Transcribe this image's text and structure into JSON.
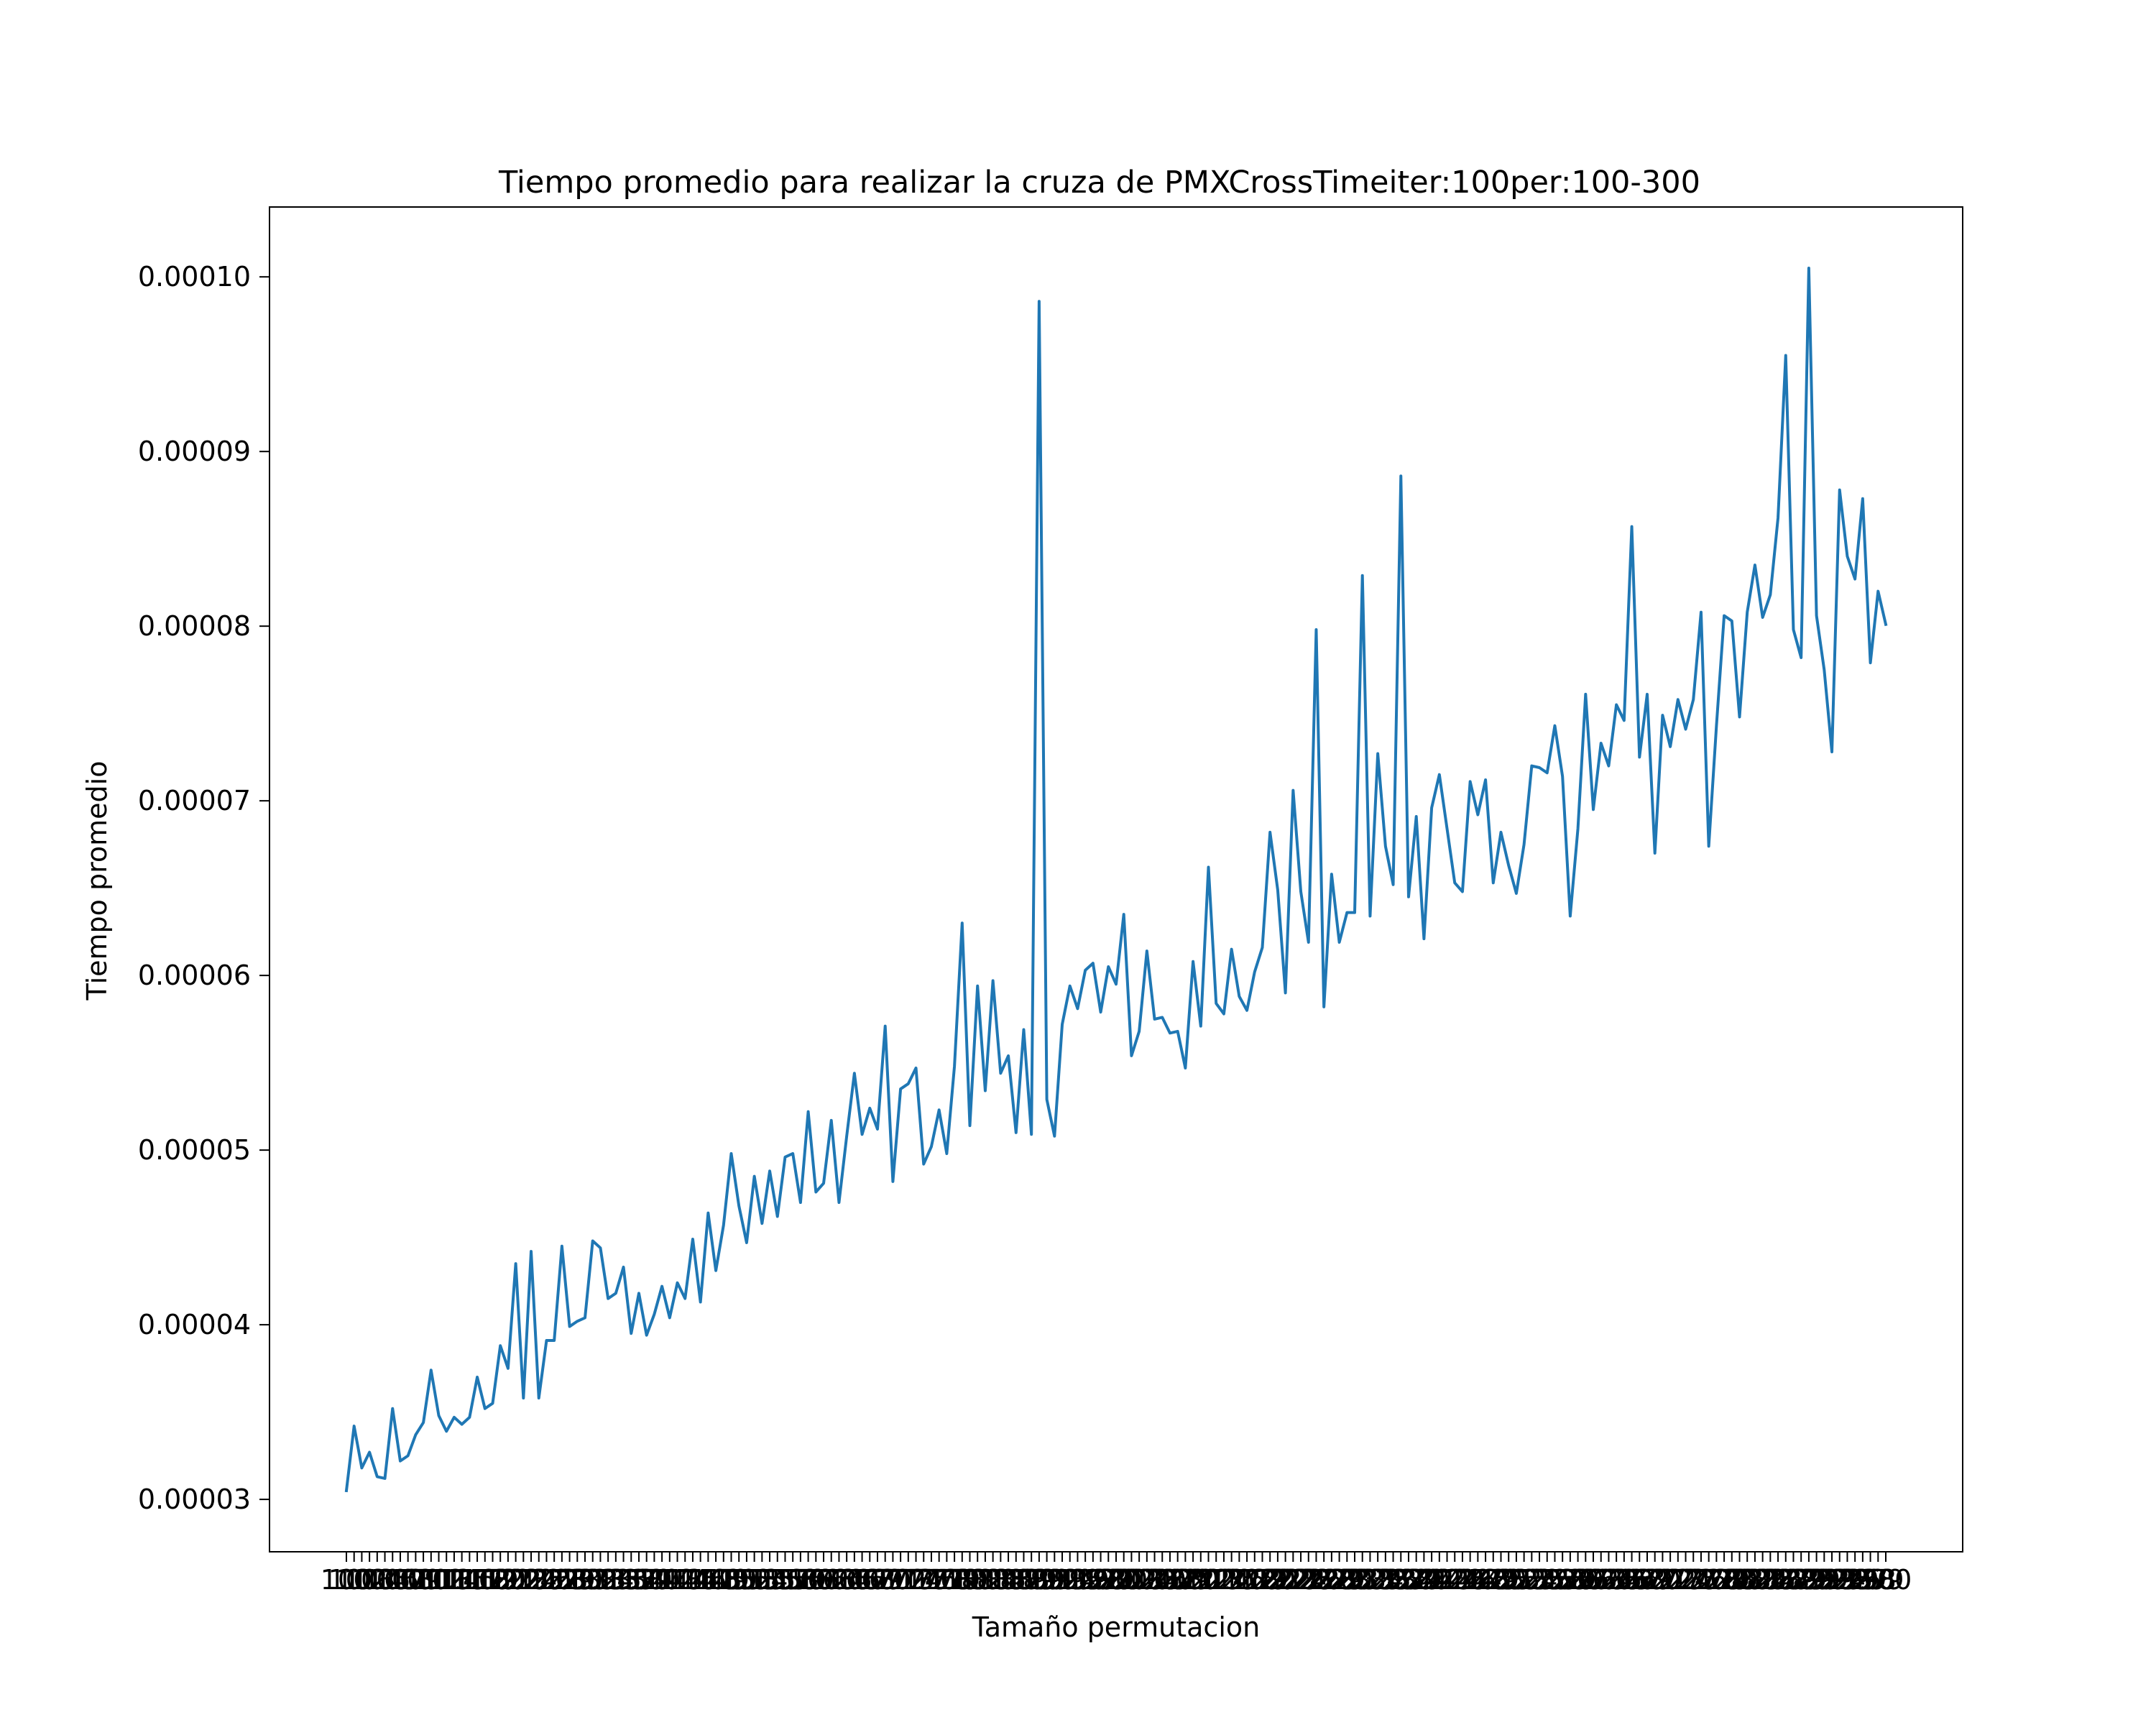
{
  "chart_data": {
    "type": "line",
    "title": "Tiempo promedio para realizar la cruza de PMXCrossTimeiter:100per:100-300",
    "xlabel": "Tamaño permutacion",
    "ylabel": "Tiempo promedio",
    "x_start": 100,
    "x_end": 300,
    "x_step": 1,
    "ylim": [
      2.7e-05,
      0.000104
    ],
    "yticks": [
      3e-05,
      4e-05,
      5e-05,
      6e-05,
      7e-05,
      8e-05,
      9e-05,
      0.0001
    ],
    "ytick_labels": [
      "0.00003",
      "0.00004",
      "0.00005",
      "0.00006",
      "0.00007",
      "0.00008",
      "0.00009",
      "0.00010"
    ],
    "grid": false,
    "line_color": "#1f77b4",
    "anchors": [
      [
        100,
        3.05e-05
      ],
      [
        101,
        3.42e-05
      ],
      [
        102,
        3.18e-05
      ],
      [
        103,
        3.27e-05
      ],
      [
        104,
        3.13e-05
      ],
      [
        105,
        3.12e-05
      ],
      [
        106,
        3.52e-05
      ],
      [
        107,
        3.22e-05
      ],
      [
        108,
        3.25e-05
      ],
      [
        109,
        3.37e-05
      ],
      [
        110,
        3.44e-05
      ],
      [
        111,
        3.74e-05
      ],
      [
        112,
        3.48e-05
      ],
      [
        113,
        3.39e-05
      ],
      [
        114,
        3.47e-05
      ],
      [
        115,
        3.43e-05
      ],
      [
        116,
        3.47e-05
      ],
      [
        117,
        3.7e-05
      ],
      [
        118,
        3.52e-05
      ],
      [
        119,
        3.55e-05
      ],
      [
        120,
        3.88e-05
      ],
      [
        121,
        3.75e-05
      ],
      [
        122,
        4.35e-05
      ],
      [
        123,
        3.58e-05
      ],
      [
        124,
        4.42e-05
      ],
      [
        125,
        3.58e-05
      ],
      [
        126,
        3.91e-05
      ],
      [
        127,
        3.91e-05
      ],
      [
        128,
        4.45e-05
      ],
      [
        129,
        3.99e-05
      ],
      [
        130,
        4.02e-05
      ],
      [
        131,
        4.04e-05
      ],
      [
        132,
        4.48e-05
      ],
      [
        133,
        4.44e-05
      ],
      [
        134,
        4.15e-05
      ],
      [
        135,
        4.18e-05
      ],
      [
        136,
        4.33e-05
      ],
      [
        137,
        3.95e-05
      ],
      [
        138,
        4.18e-05
      ],
      [
        139,
        3.94e-05
      ],
      [
        140,
        4.06e-05
      ],
      [
        141,
        4.22e-05
      ],
      [
        142,
        4.04e-05
      ],
      [
        143,
        4.24e-05
      ],
      [
        144,
        4.15e-05
      ],
      [
        145,
        4.49e-05
      ],
      [
        146,
        4.13e-05
      ],
      [
        147,
        4.64e-05
      ],
      [
        148,
        4.31e-05
      ],
      [
        149,
        4.57e-05
      ],
      [
        150,
        4.98e-05
      ],
      [
        151,
        4.68e-05
      ],
      [
        152,
        4.47e-05
      ],
      [
        153,
        4.85e-05
      ],
      [
        154,
        4.58e-05
      ],
      [
        155,
        4.88e-05
      ],
      [
        156,
        4.62e-05
      ],
      [
        157,
        4.96e-05
      ],
      [
        158,
        4.98e-05
      ],
      [
        159,
        4.7e-05
      ],
      [
        160,
        5.22e-05
      ],
      [
        161,
        4.76e-05
      ],
      [
        162,
        4.81e-05
      ],
      [
        163,
        5.17e-05
      ],
      [
        164,
        4.7e-05
      ],
      [
        165,
        5.08e-05
      ],
      [
        166,
        5.44e-05
      ],
      [
        167,
        5.09e-05
      ],
      [
        168,
        5.24e-05
      ],
      [
        169,
        5.12e-05
      ],
      [
        170,
        5.71e-05
      ],
      [
        171,
        4.82e-05
      ],
      [
        172,
        5.35e-05
      ],
      [
        173,
        5.38e-05
      ],
      [
        174,
        5.47e-05
      ],
      [
        175,
        4.92e-05
      ],
      [
        176,
        5.02e-05
      ],
      [
        177,
        5.23e-05
      ],
      [
        178,
        4.98e-05
      ],
      [
        179,
        5.48e-05
      ],
      [
        180,
        6.3e-05
      ],
      [
        181,
        5.14e-05
      ],
      [
        182,
        5.94e-05
      ],
      [
        183,
        5.34e-05
      ],
      [
        184,
        5.97e-05
      ],
      [
        185,
        5.44e-05
      ],
      [
        186,
        5.54e-05
      ],
      [
        187,
        5.1e-05
      ],
      [
        188,
        5.69e-05
      ],
      [
        189,
        5.09e-05
      ],
      [
        190,
        9.86e-05
      ],
      [
        191,
        5.29e-05
      ],
      [
        192,
        5.08e-05
      ],
      [
        193,
        5.72e-05
      ],
      [
        194,
        5.94e-05
      ],
      [
        195,
        5.81e-05
      ],
      [
        196,
        6.03e-05
      ],
      [
        197,
        6.07e-05
      ],
      [
        198,
        5.79e-05
      ],
      [
        199,
        6.05e-05
      ],
      [
        200,
        5.95e-05
      ],
      [
        201,
        6.35e-05
      ],
      [
        202,
        5.54e-05
      ],
      [
        203,
        5.68e-05
      ],
      [
        204,
        6.14e-05
      ],
      [
        205,
        5.75e-05
      ],
      [
        206,
        5.76e-05
      ],
      [
        207,
        5.67e-05
      ],
      [
        208,
        5.68e-05
      ],
      [
        209,
        5.47e-05
      ],
      [
        210,
        6.08e-05
      ],
      [
        211,
        5.71e-05
      ],
      [
        212,
        6.62e-05
      ],
      [
        213,
        5.84e-05
      ],
      [
        214,
        5.78e-05
      ],
      [
        215,
        6.15e-05
      ],
      [
        216,
        5.88e-05
      ],
      [
        217,
        5.8e-05
      ],
      [
        218,
        6.02e-05
      ],
      [
        219,
        6.16e-05
      ],
      [
        220,
        6.82e-05
      ],
      [
        221,
        6.49e-05
      ],
      [
        222,
        5.9e-05
      ],
      [
        223,
        7.06e-05
      ],
      [
        224,
        6.48e-05
      ],
      [
        225,
        6.19e-05
      ],
      [
        226,
        7.98e-05
      ],
      [
        227,
        5.82e-05
      ],
      [
        228,
        6.58e-05
      ],
      [
        229,
        6.19e-05
      ],
      [
        230,
        6.36e-05
      ],
      [
        231,
        6.36e-05
      ],
      [
        232,
        8.29e-05
      ],
      [
        233,
        6.34e-05
      ],
      [
        234,
        7.27e-05
      ],
      [
        235,
        6.74e-05
      ],
      [
        236,
        6.52e-05
      ],
      [
        237,
        8.86e-05
      ],
      [
        238,
        6.45e-05
      ],
      [
        239,
        6.91e-05
      ],
      [
        240,
        6.21e-05
      ],
      [
        241,
        6.96e-05
      ],
      [
        242,
        7.15e-05
      ],
      [
        243,
        6.84e-05
      ],
      [
        244,
        6.53e-05
      ],
      [
        245,
        6.48e-05
      ],
      [
        246,
        7.11e-05
      ],
      [
        247,
        6.92e-05
      ],
      [
        248,
        7.12e-05
      ],
      [
        249,
        6.53e-05
      ],
      [
        250,
        6.82e-05
      ],
      [
        251,
        6.63e-05
      ],
      [
        252,
        6.47e-05
      ],
      [
        253,
        6.75e-05
      ],
      [
        254,
        7.2e-05
      ],
      [
        255,
        7.19e-05
      ],
      [
        256,
        7.16e-05
      ],
      [
        257,
        7.43e-05
      ],
      [
        258,
        7.14e-05
      ],
      [
        259,
        6.34e-05
      ],
      [
        260,
        6.84e-05
      ],
      [
        261,
        7.61e-05
      ],
      [
        262,
        6.95e-05
      ],
      [
        263,
        7.33e-05
      ],
      [
        264,
        7.2e-05
      ],
      [
        265,
        7.55e-05
      ],
      [
        266,
        7.46e-05
      ],
      [
        267,
        8.57e-05
      ],
      [
        268,
        7.25e-05
      ],
      [
        269,
        7.61e-05
      ],
      [
        270,
        6.7e-05
      ],
      [
        271,
        7.49e-05
      ],
      [
        272,
        7.31e-05
      ],
      [
        273,
        7.58e-05
      ],
      [
        274,
        7.41e-05
      ],
      [
        275,
        7.58e-05
      ],
      [
        276,
        8.08e-05
      ],
      [
        277,
        6.74e-05
      ],
      [
        278,
        7.43e-05
      ],
      [
        279,
        8.06e-05
      ],
      [
        280,
        8.03e-05
      ],
      [
        281,
        7.48e-05
      ],
      [
        282,
        8.08e-05
      ],
      [
        283,
        8.35e-05
      ],
      [
        284,
        8.05e-05
      ],
      [
        285,
        8.18e-05
      ],
      [
        286,
        8.62e-05
      ],
      [
        287,
        9.55e-05
      ],
      [
        288,
        7.98e-05
      ],
      [
        289,
        7.82e-05
      ],
      [
        290,
        0.0001005
      ],
      [
        291,
        8.06e-05
      ],
      [
        292,
        7.75e-05
      ],
      [
        293,
        7.28e-05
      ],
      [
        294,
        8.78e-05
      ],
      [
        295,
        8.4e-05
      ],
      [
        296,
        8.27e-05
      ],
      [
        297,
        8.73e-05
      ],
      [
        298,
        7.79e-05
      ],
      [
        299,
        8.2e-05
      ],
      [
        300,
        8.01e-05
      ]
    ]
  }
}
